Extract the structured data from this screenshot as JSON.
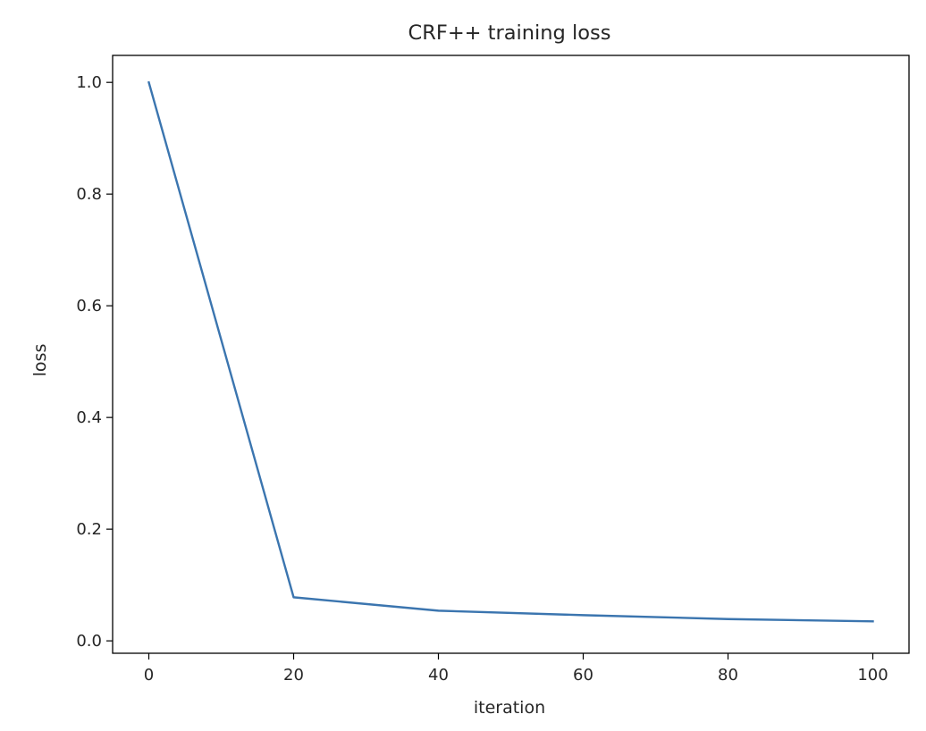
{
  "chart_data": {
    "type": "line",
    "title": "CRF++ training loss",
    "xlabel": "iteration",
    "ylabel": "loss",
    "xlim": [
      -5,
      105
    ],
    "ylim": [
      -0.0222,
      1.0483
    ],
    "x_ticks": [
      0,
      20,
      40,
      60,
      80,
      100
    ],
    "x_tick_labels": [
      "0",
      "20",
      "40",
      "60",
      "80",
      "100"
    ],
    "y_ticks": [
      0.0,
      0.2,
      0.4,
      0.6,
      0.8,
      1.0
    ],
    "y_tick_labels": [
      "0.0",
      "0.2",
      "0.4",
      "0.6",
      "0.8",
      "1.0"
    ],
    "grid": false,
    "legend": "none",
    "series": [
      {
        "x": [
          0,
          20,
          40,
          60,
          80,
          100
        ],
        "values": [
          1.0,
          0.078,
          0.054,
          0.046,
          0.039,
          0.035
        ],
        "color": "#3b75af"
      }
    ]
  }
}
